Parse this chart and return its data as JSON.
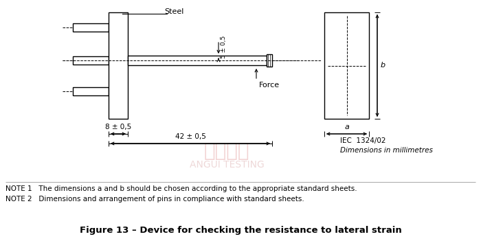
{
  "title": "Figure 13 – Device for checking the resistance to lateral strain",
  "note1": "NOTE 1   The dimensions a and b should be chosen according to the appropriate standard sheets.",
  "note2": "NOTE 2   Dimensions and arrangement of pins in compliance with standard sheets.",
  "iec_ref": "IEC  1324/02",
  "dim_note": "Dimensions in millimetres",
  "steel_label": "Steel",
  "force_label": "Force",
  "dim_8": "8 ± 0,5",
  "dim_42": "42 ± 0,5",
  "dim_5": "5 ± 0,5",
  "dim_a": "a",
  "dim_b": "b",
  "line_color": "#000000",
  "bg_color": "#ffffff"
}
